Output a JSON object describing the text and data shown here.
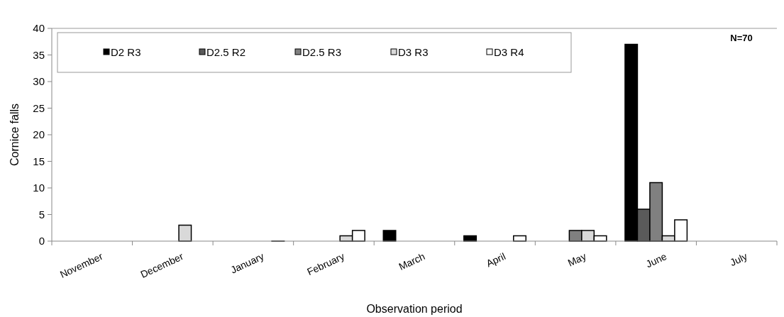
{
  "chart_data": {
    "type": "bar",
    "xlabel": "Observation period",
    "ylabel": "Cornice falls",
    "categories": [
      "November",
      "December",
      "January",
      "February",
      "March",
      "April",
      "May",
      "June",
      "July"
    ],
    "series": [
      {
        "name": "D2 R3",
        "color": "#000000",
        "values": [
          null,
          null,
          null,
          null,
          2,
          1,
          null,
          37,
          null
        ]
      },
      {
        "name": "D2.5 R2",
        "color": "#5a5a5a",
        "values": [
          null,
          null,
          null,
          null,
          null,
          null,
          null,
          6,
          null
        ]
      },
      {
        "name": "D2.5 R3",
        "color": "#808080",
        "values": [
          null,
          null,
          null,
          null,
          null,
          null,
          2,
          11,
          null
        ]
      },
      {
        "name": "D3 R3",
        "color": "#d9d9d9",
        "values": [
          null,
          3,
          null,
          1,
          null,
          null,
          2,
          1,
          null
        ]
      },
      {
        "name": "D3 R4",
        "color": "#ffffff",
        "values": [
          null,
          null,
          0,
          2,
          null,
          1,
          1,
          4,
          null
        ]
      }
    ],
    "ylim": [
      0,
      40
    ],
    "yticks": [
      0,
      5,
      10,
      15,
      20,
      25,
      30,
      35,
      40
    ],
    "legend": "top left",
    "annotations": [
      "N=70"
    ]
  }
}
